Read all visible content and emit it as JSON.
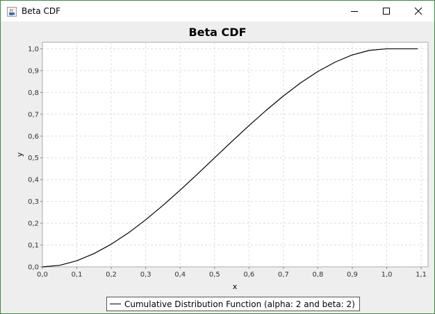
{
  "window": {
    "title": "Beta CDF",
    "icon": "java-cup-icon",
    "controls": [
      "minimize-icon",
      "maximize-icon",
      "close-icon"
    ]
  },
  "colors": {
    "frame_border": "#3c8a3c",
    "panel_background": "#eeeeee",
    "plot_background": "#ffffff",
    "gridline": "#dddddd",
    "series_line": "#000000"
  },
  "chart_data": {
    "type": "line",
    "title": "Beta CDF",
    "xlabel": "x",
    "ylabel": "y",
    "xlim": [
      0,
      1.12
    ],
    "ylim": [
      0,
      1.03
    ],
    "xticks": [
      0.0,
      0.1,
      0.2,
      0.3,
      0.4,
      0.5,
      0.6,
      0.7,
      0.8,
      0.9,
      1.0,
      1.1
    ],
    "xtick_labels": [
      "0,0",
      "0,1",
      "0,2",
      "0,3",
      "0,4",
      "0,5",
      "0,6",
      "0,7",
      "0,8",
      "0,9",
      "1,0",
      "1,1"
    ],
    "yticks": [
      0.0,
      0.1,
      0.2,
      0.3,
      0.4,
      0.5,
      0.6,
      0.7,
      0.8,
      0.9,
      1.0
    ],
    "ytick_labels": [
      "0,0",
      "0,1",
      "0,2",
      "0,3",
      "0,4",
      "0,5",
      "0,6",
      "0,7",
      "0,8",
      "0,9",
      "1,0"
    ],
    "grid": true,
    "legend_position": "bottom-center",
    "series": [
      {
        "name": "Cumulative Distribution Function (alpha: 2 and beta: 2)",
        "color": "#000000",
        "x": [
          0.0,
          0.05,
          0.1,
          0.15,
          0.2,
          0.25,
          0.3,
          0.35,
          0.4,
          0.45,
          0.5,
          0.55,
          0.6,
          0.65,
          0.7,
          0.75,
          0.8,
          0.85,
          0.9,
          0.95,
          1.0,
          1.05,
          1.09
        ],
        "y": [
          0.0,
          0.007,
          0.028,
          0.061,
          0.104,
          0.156,
          0.216,
          0.282,
          0.352,
          0.425,
          0.5,
          0.575,
          0.648,
          0.718,
          0.784,
          0.844,
          0.896,
          0.939,
          0.972,
          0.993,
          1.0,
          1.0,
          1.0
        ]
      }
    ]
  }
}
